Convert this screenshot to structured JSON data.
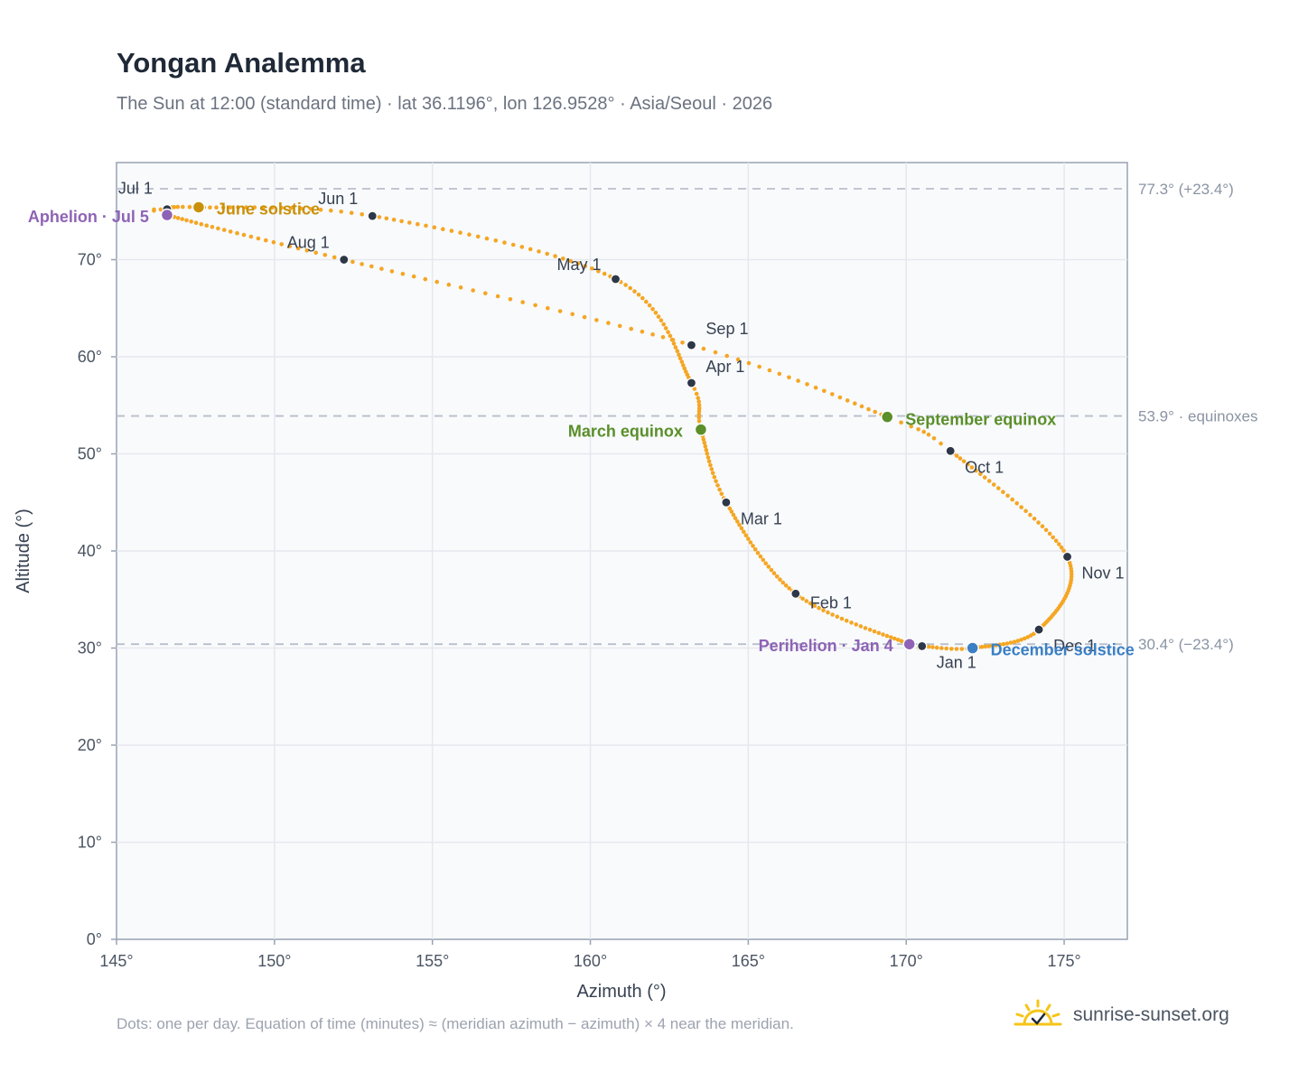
{
  "title": "Yongan Analemma",
  "subtitle": "The Sun at 12:00 (standard time) · lat 36.1196°, lon 126.9528° · Asia/Seoul · 2026",
  "footnote": "Dots: one per day. Equation of time (minutes) ≈ (meridian azimuth − azimuth) × 4 near the meridian.",
  "brand": {
    "text": "sunrise-sunset.org",
    "icon": "sun-check-icon"
  },
  "colors": {
    "curve": "#f5a623",
    "month_marker": "#2d3748",
    "solstice_june": "#c9900a",
    "solstice_december": "#3b7fc4",
    "equinox": "#5a8f29",
    "apsis": "#8e63b5",
    "plot_bg": "#f8fafc",
    "grid": "#e5e8ee",
    "ref_line": "#b8c0cc"
  },
  "chart_data": {
    "type": "scatter",
    "xlabel": "Azimuth (°)",
    "ylabel": "Altitude (°)",
    "xlim": [
      145,
      177
    ],
    "ylim": [
      0,
      80
    ],
    "x_ticks": [
      "145°",
      "150°",
      "155°",
      "160°",
      "165°",
      "170°",
      "175°"
    ],
    "y_ticks": [
      "0°",
      "10°",
      "20°",
      "30°",
      "40°",
      "50°",
      "60°",
      "70°"
    ],
    "grid": true,
    "reference_lines": [
      {
        "altitude": 77.3,
        "label": "77.3° (+23.4°)"
      },
      {
        "altitude": 53.9,
        "label": "53.9° · equinoxes"
      },
      {
        "altitude": 30.4,
        "label": "30.4° (−23.4°)"
      }
    ],
    "month_points": [
      {
        "label": "Jan 1",
        "az": 170.5,
        "alt": 30.2
      },
      {
        "label": "Feb 1",
        "az": 166.5,
        "alt": 35.6
      },
      {
        "label": "Mar 1",
        "az": 164.3,
        "alt": 45.0
      },
      {
        "label": "Apr 1",
        "az": 163.2,
        "alt": 57.3
      },
      {
        "label": "May 1",
        "az": 160.8,
        "alt": 68.0
      },
      {
        "label": "Jun 1",
        "az": 153.1,
        "alt": 74.5
      },
      {
        "label": "Jul 1",
        "az": 146.6,
        "alt": 75.2
      },
      {
        "label": "Aug 1",
        "az": 152.2,
        "alt": 70.0
      },
      {
        "label": "Sep 1",
        "az": 163.2,
        "alt": 61.2
      },
      {
        "label": "Oct 1",
        "az": 171.4,
        "alt": 50.3
      },
      {
        "label": "Nov 1",
        "az": 175.1,
        "alt": 39.4
      },
      {
        "label": "Dec 1",
        "az": 174.2,
        "alt": 31.9
      }
    ],
    "events": [
      {
        "label": "Perihelion · Jan 4",
        "az": 170.1,
        "alt": 30.4,
        "kind": "apsis"
      },
      {
        "label": "March equinox",
        "az": 163.5,
        "alt": 52.5,
        "kind": "equinox"
      },
      {
        "label": "June solstice",
        "az": 147.6,
        "alt": 75.4,
        "kind": "solstice_june"
      },
      {
        "label": "Aphelion · Jul 5",
        "az": 146.6,
        "alt": 74.6,
        "kind": "apsis"
      },
      {
        "label": "September equinox",
        "az": 169.4,
        "alt": 53.8,
        "kind": "equinox"
      },
      {
        "label": "December solstice",
        "az": 172.1,
        "alt": 30.0,
        "kind": "solstice_december"
      }
    ]
  }
}
